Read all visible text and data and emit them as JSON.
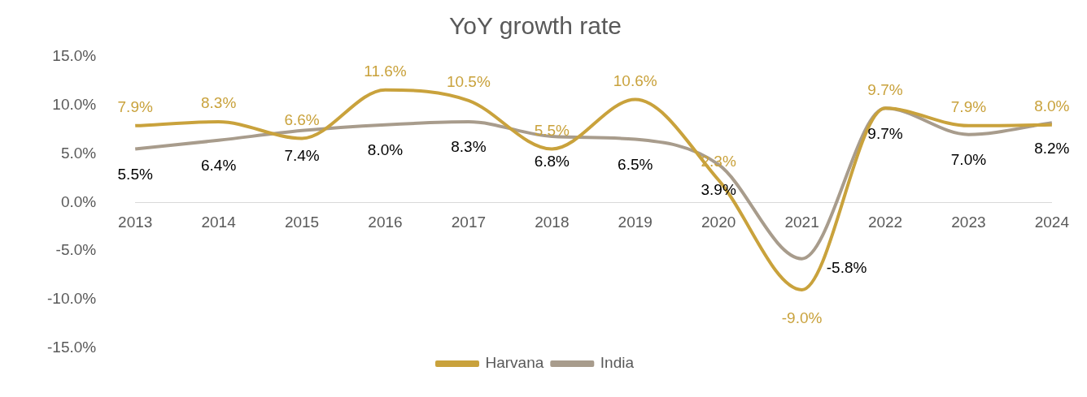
{
  "chart_data": {
    "type": "line",
    "title": "YoY growth rate",
    "categories": [
      "2013",
      "2014",
      "2015",
      "2016",
      "2017",
      "2018",
      "2019",
      "2020",
      "2021",
      "2022",
      "2023",
      "2024"
    ],
    "series": [
      {
        "name": "Harvana",
        "color": "#c9a23c",
        "values": [
          7.9,
          8.3,
          6.6,
          11.6,
          10.5,
          5.5,
          10.6,
          2.3,
          -9.0,
          9.7,
          7.9,
          8.0
        ],
        "value_labels": [
          "7.9%",
          "8.3%",
          "6.6%",
          "11.6%",
          "10.5%",
          "5.5%",
          "10.6%",
          "2.3%",
          "-9.0%",
          "9.7%",
          "7.9%",
          "8.0%"
        ]
      },
      {
        "name": "India",
        "color": "#a89c8c",
        "values": [
          5.5,
          6.4,
          7.4,
          8.0,
          8.3,
          6.8,
          6.5,
          3.9,
          -5.8,
          9.7,
          7.0,
          8.2
        ],
        "value_labels": [
          "5.5%",
          "6.4%",
          "7.4%",
          "8.0%",
          "8.3%",
          "6.8%",
          "6.5%",
          "3.9%",
          "-5.8%",
          "9.7%",
          "7.0%",
          "8.2%"
        ]
      }
    ],
    "ylim": [
      -15,
      15
    ],
    "yticks": [
      {
        "value": -15,
        "label": "-15.0%"
      },
      {
        "value": -10,
        "label": "-10.0%"
      },
      {
        "value": -5,
        "label": "-5.0%"
      },
      {
        "value": 0,
        "label": "0.0%"
      },
      {
        "value": 5,
        "label": "5.0%"
      },
      {
        "value": 10,
        "label": "10.0%"
      },
      {
        "value": 15,
        "label": "15.0%"
      }
    ],
    "grid": false,
    "legend": "bottom",
    "marker": "none",
    "line_style": "solid"
  }
}
